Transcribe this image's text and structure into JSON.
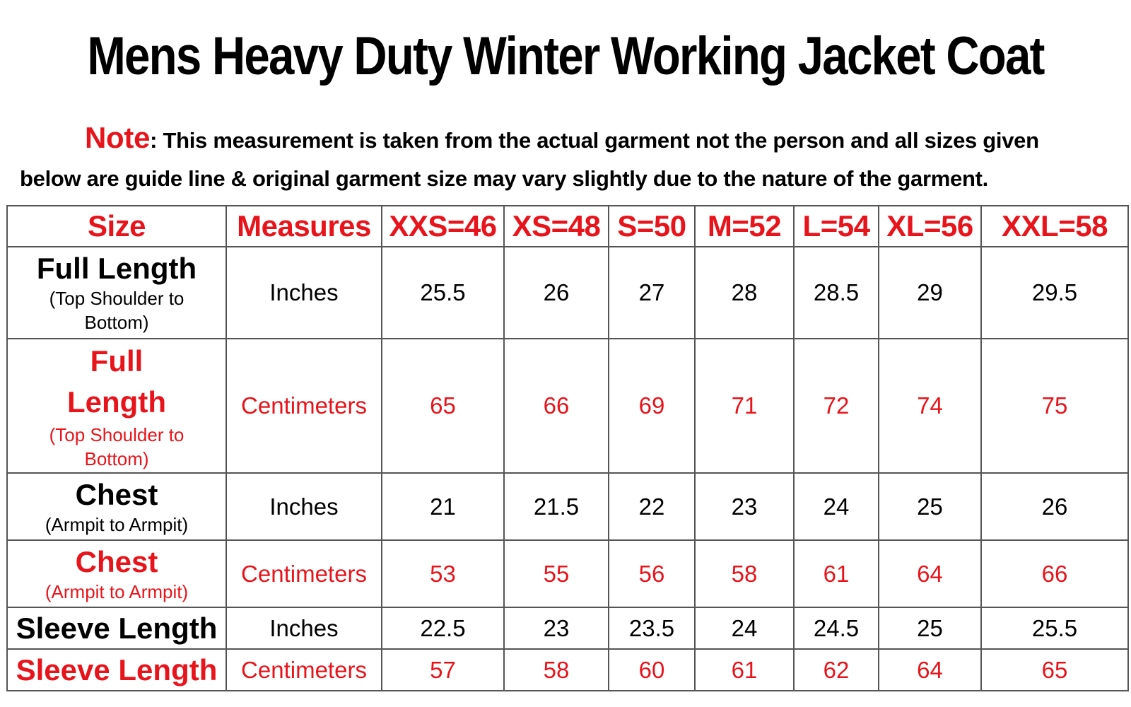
{
  "title": "Mens Heavy Duty Winter Working Jacket Coat",
  "note": {
    "label": "Note",
    "line1": ": This measurement is taken from the actual garment not the person and all sizes given",
    "line2": "below are guide line & original garment size may vary slightly due to the nature of the garment."
  },
  "colors": {
    "accent_red": "#e8141b",
    "text_black": "#000000",
    "grid": "#555555"
  },
  "table": {
    "headers": [
      "Size",
      "Measures",
      "XXS=46",
      "XS=48",
      "S=50",
      "M=52",
      "L=54",
      "XL=56",
      "XXL=58"
    ],
    "rows": [
      {
        "label": "Full Length",
        "sublabel": "(Top Shoulder to Bottom)",
        "measure": "Inches",
        "values": [
          "25.5",
          "26",
          "27",
          "28",
          "28.5",
          "29",
          "29.5"
        ]
      },
      {
        "label": "Full Length",
        "sublabel": "(Top Shoulder to Bottom)",
        "measure": "Centimeters",
        "values": [
          "65",
          "66",
          "69",
          "71",
          "72",
          "74",
          "75"
        ]
      },
      {
        "label": "Chest",
        "sublabel": "(Armpit to Armpit)",
        "measure": "Inches",
        "values": [
          "21",
          "21.5",
          "22",
          "23",
          "24",
          "25",
          "26"
        ]
      },
      {
        "label": "Chest",
        "sublabel": "(Armpit to Armpit)",
        "measure": "Centimeters",
        "values": [
          "53",
          "55",
          "56",
          "58",
          "61",
          "64",
          "66"
        ]
      },
      {
        "label": "Sleeve Length",
        "sublabel": "",
        "measure": "Inches",
        "values": [
          "22.5",
          "23",
          "23.5",
          "24",
          "24.5",
          "25",
          "25.5"
        ]
      },
      {
        "label": "Sleeve Length",
        "sublabel": "",
        "measure": "Centimeters",
        "values": [
          "57",
          "58",
          "60",
          "61",
          "62",
          "64",
          "65"
        ]
      }
    ]
  }
}
